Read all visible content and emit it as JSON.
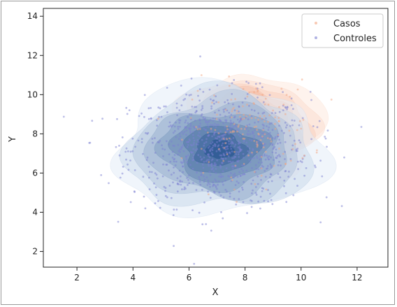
{
  "chart_data": {
    "type": "scatter",
    "title": "",
    "xlabel": "X",
    "ylabel": "Y",
    "xlim": [
      0.8,
      13.1
    ],
    "ylim": [
      1.2,
      14.4
    ],
    "xticks": [
      2,
      4,
      6,
      8,
      10,
      12
    ],
    "yticks": [
      2,
      4,
      6,
      8,
      10,
      12,
      14
    ],
    "grid": false,
    "legend_position": "top-right",
    "series": [
      {
        "name": "Casos",
        "color": "#f4a582",
        "kde_color_light": "#fde4d6",
        "kde_color_dark": "#e8896a",
        "center": [
          8.2,
          8.3
        ],
        "spread": [
          1.1,
          1.2
        ],
        "n_points": 160
      },
      {
        "name": "Controles",
        "color": "#7b7fd1",
        "kde_color_light": "#e3edf8",
        "kde_color_dark": "#1f4e8c",
        "center": [
          7.1,
          7.2
        ],
        "spread": [
          1.6,
          1.45
        ],
        "n_points": 900
      }
    ]
  }
}
